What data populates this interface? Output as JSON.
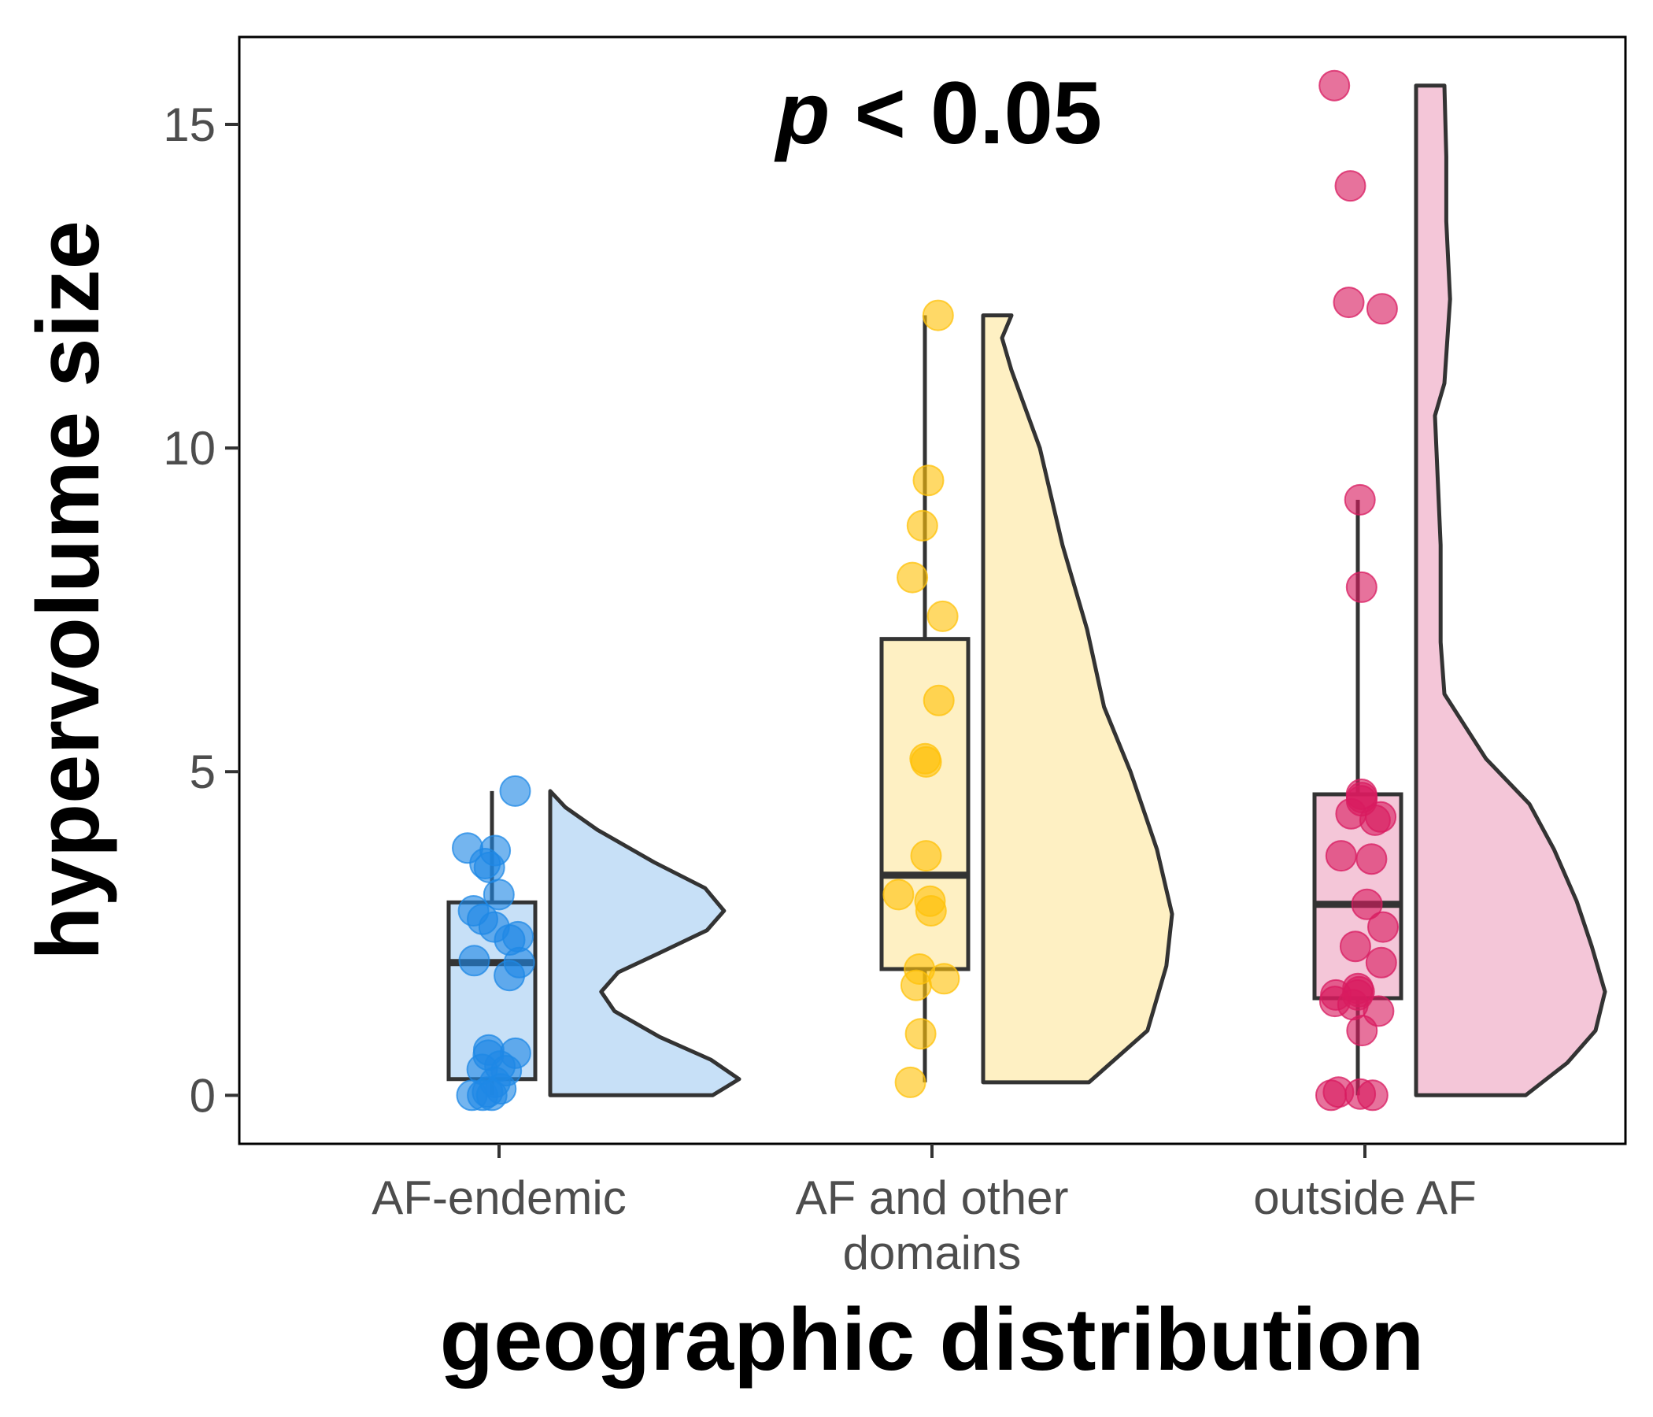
{
  "chart_data": {
    "type": "raincloud",
    "xlabel": "geographic distribution",
    "ylabel": "hypervolume size",
    "ylim": [
      -0.75,
      16.35
    ],
    "yticks": [
      0,
      5,
      10,
      15
    ],
    "grid": false,
    "annotation": {
      "prefix": "p",
      "suffix": " < 0.05"
    },
    "groups": [
      {
        "category_lines": [
          "AF-endemic"
        ],
        "color": "#1E88E5",
        "fill": "#C7E0F7",
        "box": {
          "q1": 0.25,
          "median": 2.05,
          "q3": 2.98,
          "whisker_low": 0.0,
          "whisker_high": 4.7
        },
        "points": [
          4.7,
          3.82,
          3.78,
          3.58,
          3.52,
          3.1,
          2.85,
          2.72,
          2.6,
          2.45,
          2.4,
          2.08,
          2.05,
          1.85,
          0.7,
          0.65,
          0.62,
          0.45,
          0.4,
          0.38,
          0.2,
          0.1,
          0.05,
          0.0,
          0.0,
          0.0
        ],
        "density": [
          [
            0.0,
            0.86
          ],
          [
            0.25,
            1.0
          ],
          [
            0.55,
            0.85
          ],
          [
            0.9,
            0.58
          ],
          [
            1.3,
            0.34
          ],
          [
            1.6,
            0.27
          ],
          [
            1.9,
            0.36
          ],
          [
            2.2,
            0.58
          ],
          [
            2.55,
            0.83
          ],
          [
            2.85,
            0.92
          ],
          [
            3.2,
            0.82
          ],
          [
            3.6,
            0.55
          ],
          [
            4.1,
            0.25
          ],
          [
            4.45,
            0.08
          ],
          [
            4.7,
            0.0
          ]
        ]
      },
      {
        "category_lines": [
          "AF and other",
          "domains"
        ],
        "color": "#FFC20A",
        "fill": "#FEF0C3",
        "box": {
          "q1": 1.95,
          "median": 3.4,
          "q3": 7.05,
          "whisker_low": 0.2,
          "whisker_high": 12.05
        },
        "points": [
          12.05,
          9.5,
          8.8,
          8.0,
          7.4,
          6.1,
          5.2,
          5.15,
          3.7,
          3.1,
          3.0,
          2.85,
          1.95,
          1.8,
          1.7,
          0.95,
          0.2
        ],
        "density": [
          [
            0.2,
            0.56
          ],
          [
            1.0,
            0.87
          ],
          [
            2.0,
            0.97
          ],
          [
            2.8,
            1.0
          ],
          [
            3.8,
            0.92
          ],
          [
            5.0,
            0.78
          ],
          [
            6.0,
            0.64
          ],
          [
            7.2,
            0.55
          ],
          [
            8.5,
            0.42
          ],
          [
            10.0,
            0.3
          ],
          [
            11.2,
            0.15
          ],
          [
            11.7,
            0.1
          ],
          [
            12.05,
            0.15
          ]
        ]
      },
      {
        "category_lines": [
          "outside AF"
        ],
        "color": "#D81B60",
        "fill": "#F4C6D8",
        "box": {
          "q1": 1.5,
          "median": 2.95,
          "q3": 4.65,
          "whisker_low": 0.0,
          "whisker_high": 9.2
        },
        "points": [
          15.6,
          14.05,
          12.25,
          12.15,
          9.2,
          7.85,
          4.65,
          4.6,
          4.55,
          4.35,
          4.3,
          4.25,
          3.7,
          3.65,
          2.95,
          2.6,
          2.3,
          2.05,
          1.65,
          1.6,
          1.55,
          1.55,
          1.45,
          1.4,
          1.3,
          1.0,
          0.05,
          0.02,
          0.0,
          0.0
        ],
        "density": [
          [
            0.0,
            0.58
          ],
          [
            0.5,
            0.8
          ],
          [
            1.0,
            0.95
          ],
          [
            1.6,
            1.0
          ],
          [
            2.3,
            0.93
          ],
          [
            3.0,
            0.85
          ],
          [
            3.8,
            0.73
          ],
          [
            4.5,
            0.6
          ],
          [
            5.2,
            0.37
          ],
          [
            6.2,
            0.15
          ],
          [
            7.0,
            0.13
          ],
          [
            8.5,
            0.13
          ],
          [
            10.5,
            0.1
          ],
          [
            11.0,
            0.15
          ],
          [
            12.3,
            0.18
          ],
          [
            13.5,
            0.16
          ],
          [
            14.5,
            0.16
          ],
          [
            15.6,
            0.15
          ]
        ]
      }
    ]
  }
}
